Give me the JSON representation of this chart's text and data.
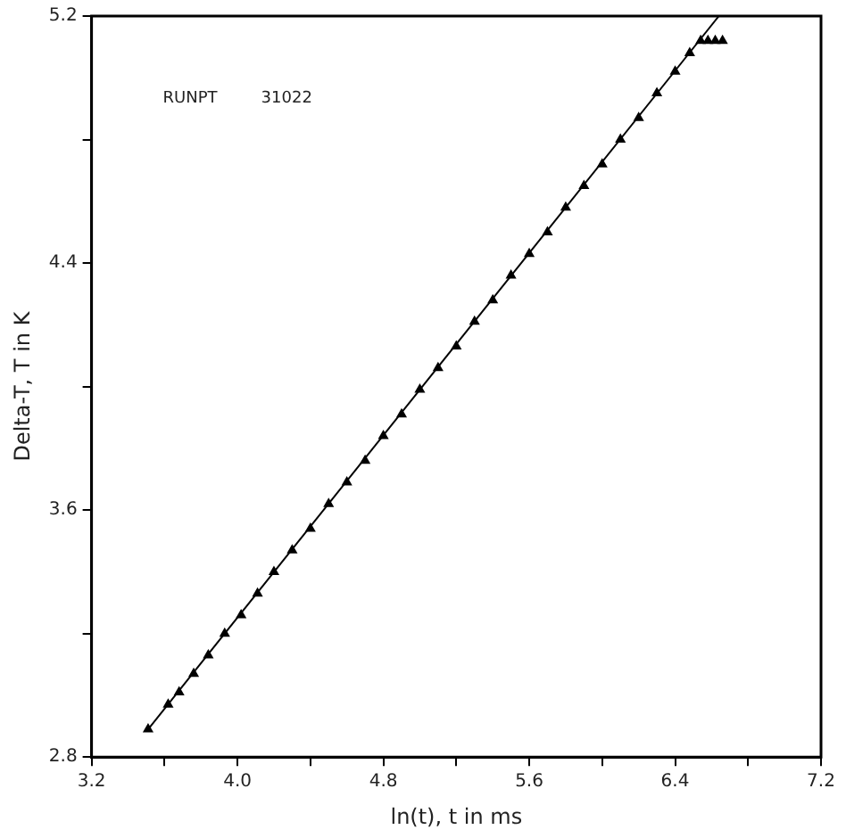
{
  "chart_data": {
    "type": "scatter",
    "xlabel": "ln(t), t in ms",
    "ylabel": "Delta-T, T in K",
    "annotations": [
      "RUNPT",
      "31022"
    ],
    "xlim": [
      3.2,
      7.2
    ],
    "ylim": [
      2.8,
      5.2
    ],
    "xticks": [
      3.2,
      {
        "value": 3.6,
        "label": null
      },
      {
        "value": 4.0,
        "label": "4.0"
      },
      {
        "value": 4.4,
        "label": null
      },
      4.8,
      {
        "value": 5.2,
        "label": null
      },
      5.6,
      {
        "value": 6.0,
        "label": null
      },
      6.4,
      {
        "value": 6.8,
        "label": null
      },
      7.2
    ],
    "yticks": [
      2.8,
      {
        "value": 3.2,
        "label": null
      },
      3.6,
      {
        "value": 4.0,
        "label": null
      },
      4.4,
      {
        "value": 4.8,
        "label": null
      },
      5.2
    ],
    "grid": false,
    "legend": false,
    "marker": "triangle",
    "series": [
      {
        "type": "scatter",
        "color": "#000000",
        "x": [
          3.51,
          3.62,
          3.68,
          3.76,
          3.84,
          3.93,
          4.02,
          4.11,
          4.2,
          4.3,
          4.4,
          4.5,
          4.6,
          4.7,
          4.8,
          4.9,
          5.0,
          5.1,
          5.2,
          5.3,
          5.4,
          5.5,
          5.6,
          5.7,
          5.8,
          5.9,
          6.0,
          6.1,
          6.2,
          6.3,
          6.4,
          6.48,
          6.54,
          6.58,
          6.62,
          6.66
        ],
        "values": [
          2.89,
          2.97,
          3.01,
          3.07,
          3.13,
          3.2,
          3.26,
          3.33,
          3.4,
          3.47,
          3.54,
          3.62,
          3.69,
          3.76,
          3.84,
          3.91,
          3.99,
          4.06,
          4.13,
          4.21,
          4.28,
          4.36,
          4.43,
          4.5,
          4.58,
          4.65,
          4.72,
          4.8,
          4.87,
          4.95,
          5.02,
          5.08,
          5.12,
          5.12,
          5.12,
          5.12
        ]
      },
      {
        "type": "line",
        "color": "#000000",
        "line_style": "solid",
        "marker": "none",
        "x": [
          3.51,
          6.64
        ],
        "values": [
          2.89,
          5.2
        ]
      }
    ]
  }
}
